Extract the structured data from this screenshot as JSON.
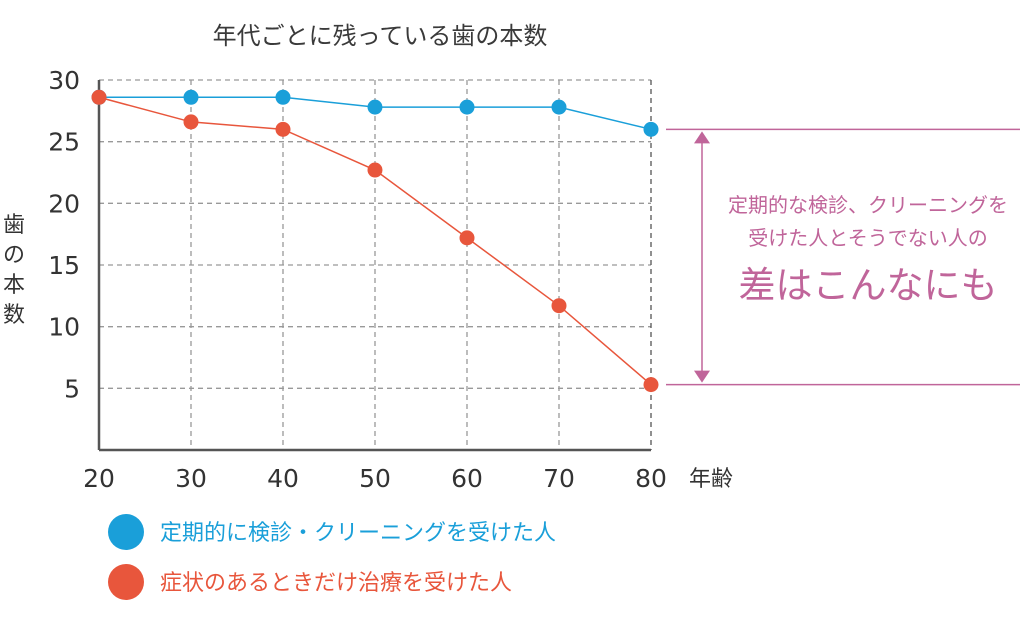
{
  "chart_data": {
    "type": "line",
    "title": "年代ごとに残っている歯の本数",
    "xlabel": "年齢",
    "ylabel": "歯の本数",
    "x": [
      20,
      30,
      40,
      50,
      60,
      70,
      80
    ],
    "x_ticks": [
      "20",
      "30",
      "40",
      "50",
      "60",
      "70",
      "80"
    ],
    "y_ticks": [
      "5",
      "10",
      "15",
      "20",
      "25",
      "30"
    ],
    "xlim": [
      20,
      80
    ],
    "ylim": [
      0,
      30
    ],
    "grid": true,
    "series": [
      {
        "name": "定期的に検診・クリーニングを受けた人",
        "color": "#1a9fd9",
        "values": [
          28.6,
          28.6,
          28.6,
          27.8,
          27.8,
          27.8,
          26.0
        ]
      },
      {
        "name": "症状のあるときだけ治療を受けた人",
        "color": "#e8563c",
        "values": [
          28.6,
          26.6,
          26.0,
          22.7,
          17.2,
          11.7,
          5.3
        ]
      }
    ],
    "legend_position": "bottom-left",
    "annotation": {
      "line1": "定期的な検診、クリーニングを",
      "line2": "受けた人とそうでない人の",
      "line3": "差はこんなにも",
      "color": "#c0659a"
    }
  }
}
